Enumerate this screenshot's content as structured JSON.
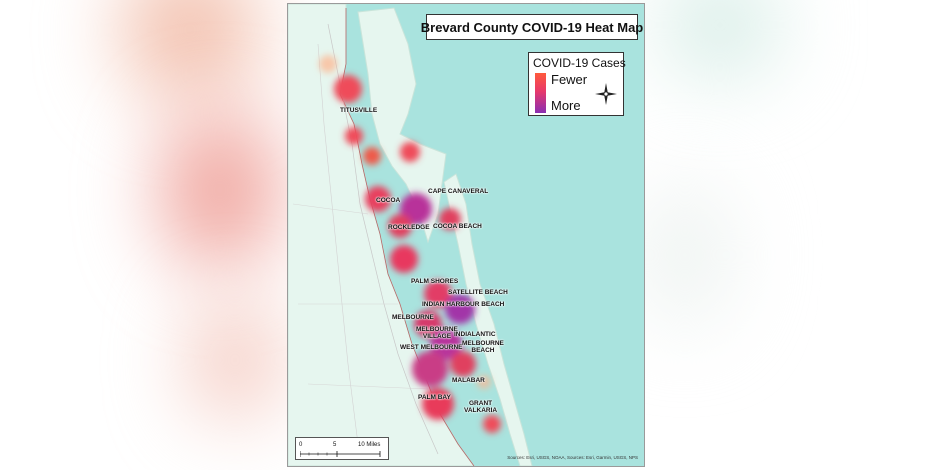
{
  "map": {
    "title": "Brevard County COVID-19 Heat Map",
    "legend": {
      "title": "COVID-19 Cases",
      "low_label": "Fewer",
      "high_label": "More",
      "color_low": "#ff5a3c",
      "color_high": "#8b2fb3"
    },
    "cities": [
      {
        "id": "titusville",
        "label": "TITUSVILLE"
      },
      {
        "id": "cape-canaveral",
        "label": "CAPE CANAVERAL"
      },
      {
        "id": "cocoa",
        "label": "COCOA"
      },
      {
        "id": "rockledge",
        "label": "ROCKLEDGE"
      },
      {
        "id": "cocoa-beach",
        "label": "COCOA BEACH"
      },
      {
        "id": "palm-shores",
        "label": "PALM SHORES"
      },
      {
        "id": "satellite-beach",
        "label": "SATELLITE BEACH"
      },
      {
        "id": "indian-harbour-beach",
        "label": "INDIAN HARBOUR BEACH"
      },
      {
        "id": "melbourne",
        "label": "MELBOURNE"
      },
      {
        "id": "melbourne-village",
        "label": "MELBOURNE\nVILLAGE"
      },
      {
        "id": "indialantic",
        "label": "INDIALANTIC"
      },
      {
        "id": "west-melbourne",
        "label": "WEST MELBOURNE"
      },
      {
        "id": "melbourne-beach",
        "label": "MELBOURNE\nBEACH"
      },
      {
        "id": "malabar",
        "label": "MALABAR"
      },
      {
        "id": "palm-bay",
        "label": "PALM BAY"
      },
      {
        "id": "grant-valkaria",
        "label": "GRANT\nVALKARIA"
      }
    ],
    "scale_bar": {
      "ticks": [
        "0",
        "5",
        "10 Miles"
      ]
    },
    "attribution": "Sources: Esri, USGS, NOAA, Sources: Esri, Garmin, USGS, NPS",
    "colors": {
      "water": "#a9e3de",
      "land": "#e6f6ef",
      "county_line": "#b66a6a"
    }
  }
}
